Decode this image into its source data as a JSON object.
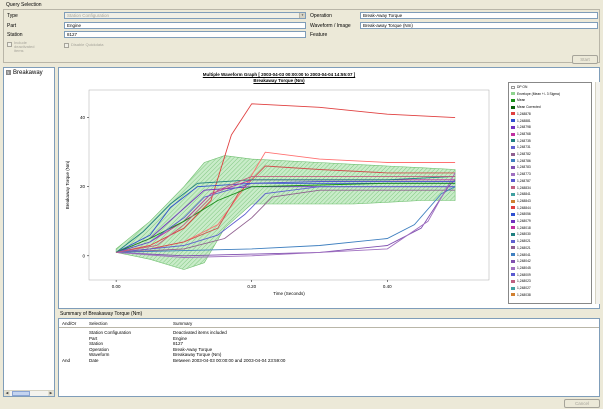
{
  "query_selection": {
    "title": "Query Selection",
    "type_label": "Type",
    "type_value": "Station Configuration",
    "part_label": "Part",
    "part_value": "Engine",
    "station_label": "Station",
    "station_value": "8127",
    "operation_label": "Operation",
    "operation_value": "Break-Away Torque",
    "waveform_label": "Waveform / Image",
    "waveform_value": "Break-away Torque (Nm)",
    "feature_label": "Feature",
    "feature_value": "",
    "include_label": "Include deactivated items",
    "disable_label": "Disable Quickdata",
    "start_button": "Start"
  },
  "tree": {
    "item_label": "Breakaway",
    "expander": "⊟"
  },
  "chart": {
    "title_line1": "Multiple Waveform Graph [ 2003-04-03 00:00:00 to 2003-04-04 14:55:07 ]",
    "title_line2": "Breakaway Torque (Nm)",
    "xlabel": "Time (Seconds)",
    "ylabel": "Breakaway Torque (Nm)",
    "colors": {
      "band": "#8fd48f",
      "band_stroke": "#6fbf6f",
      "mean": "#1a8f1a",
      "mean_corrected": "#0a600a"
    }
  },
  "chart_data": {
    "type": "line",
    "title": "Multiple Waveform Graph [ 2003-04-03 00:00:00 to 2003-04-04 14:55:07 ]",
    "subtitle": "Breakaway Torque (Nm)",
    "xlabel": "Time (Seconds)",
    "ylabel": "Breakaway Torque (Nm)",
    "xlim": [
      -0.04,
      0.55
    ],
    "ylim": [
      -7,
      48
    ],
    "x_ticks": [
      0.0,
      0.2,
      0.4
    ],
    "x_tick_labels": [
      "0.00",
      "0.20",
      "0.40"
    ],
    "y_ticks": [
      0,
      20,
      40
    ],
    "y_tick_labels": [
      "0",
      "20",
      "40"
    ],
    "band": {
      "name": "Envelope (Mean +/- 3 Sigma)",
      "x": [
        0.0,
        0.05,
        0.1,
        0.13,
        0.16,
        0.2,
        0.25,
        0.3,
        0.35,
        0.4,
        0.45,
        0.5
      ],
      "upper": [
        2,
        10,
        20,
        27,
        29,
        28,
        27.5,
        27,
        26.5,
        26,
        25.5,
        25
      ],
      "lower": [
        1,
        -1,
        -4,
        -2,
        8,
        15,
        15,
        15,
        15,
        15.5,
        16,
        16
      ]
    },
    "legend": [
      "DP ON",
      "Envelope (Mean +/- 3 Sigma)",
      "Mean",
      "Mean Corrected",
      "1,248878",
      "1,248881",
      "1,248798",
      "1,248768",
      "1,248735",
      "1,248731",
      "1,248782",
      "1,248786",
      "1,248783",
      "1,248773",
      "1,248787",
      "1,248834",
      "1,248841",
      "1,248843",
      "1,248844",
      "1,248056",
      "1,248079",
      "1,248018",
      "1,248030",
      "1,248021",
      "1,248021",
      "1,248041",
      "1,248042",
      "1,248045",
      "1,248009",
      "1,248023",
      "1,248027",
      "1,248038"
    ],
    "series": [
      {
        "color": "#e04040",
        "x": [
          0.0,
          0.05,
          0.1,
          0.14,
          0.17,
          0.2,
          0.3,
          0.4,
          0.5
        ],
        "values": [
          1,
          3,
          8,
          16,
          35,
          44,
          43,
          41,
          40
        ]
      },
      {
        "color": "#ff7070",
        "x": [
          0.0,
          0.05,
          0.1,
          0.15,
          0.19,
          0.22,
          0.3,
          0.4,
          0.5
        ],
        "values": [
          1,
          2,
          4,
          9,
          20,
          30,
          28,
          27,
          27
        ]
      },
      {
        "color": "#d05050",
        "x": [
          0.0,
          0.05,
          0.1,
          0.15,
          0.18,
          0.22,
          0.3,
          0.4,
          0.5
        ],
        "values": [
          1,
          2,
          4,
          8,
          18,
          26,
          25,
          24,
          24
        ]
      },
      {
        "color": "#3050d0",
        "x": [
          0.0,
          0.05,
          0.08,
          0.12,
          0.2,
          0.3,
          0.4,
          0.5
        ],
        "values": [
          1,
          6,
          14,
          20,
          21,
          21,
          21,
          21
        ]
      },
      {
        "color": "#7030c0",
        "x": [
          0.0,
          0.05,
          0.09,
          0.13,
          0.2,
          0.3,
          0.4,
          0.5
        ],
        "values": [
          1,
          5,
          12,
          19,
          20,
          20,
          20,
          20
        ]
      },
      {
        "color": "#c030a0",
        "x": [
          0.0,
          0.05,
          0.1,
          0.14,
          0.2,
          0.3,
          0.4,
          0.5
        ],
        "values": [
          1,
          4,
          10,
          18,
          22,
          22,
          22,
          22
        ]
      },
      {
        "color": "#208080",
        "x": [
          0.0,
          0.04,
          0.08,
          0.12,
          0.2,
          0.3,
          0.4,
          0.5
        ],
        "values": [
          1,
          7,
          15,
          21,
          22,
          22,
          22,
          23
        ]
      },
      {
        "color": "#6060d0",
        "x": [
          0.0,
          0.1,
          0.15,
          0.19,
          0.22,
          0.3,
          0.4,
          0.5
        ],
        "values": [
          1,
          3,
          6,
          12,
          18,
          20,
          20,
          20
        ]
      },
      {
        "color": "#906090",
        "x": [
          0.0,
          0.1,
          0.16,
          0.2,
          0.23,
          0.3,
          0.4,
          0.5
        ],
        "values": [
          1,
          2,
          5,
          11,
          17,
          19,
          19,
          19
        ]
      },
      {
        "color": "#4080c0",
        "x": [
          0.0,
          0.1,
          0.2,
          0.3,
          0.4,
          0.44,
          0.48,
          0.5
        ],
        "values": [
          1,
          1.5,
          2,
          3,
          5,
          9,
          18,
          20
        ]
      },
      {
        "color": "#8050b0",
        "x": [
          0.0,
          0.1,
          0.2,
          0.3,
          0.4,
          0.45,
          0.49,
          0.5
        ],
        "values": [
          1,
          0,
          0.5,
          1,
          3,
          8,
          20,
          22
        ]
      },
      {
        "color": "#a070c0",
        "x": [
          0.0,
          0.1,
          0.2,
          0.3,
          0.4,
          0.46,
          0.5
        ],
        "values": [
          1,
          -0.5,
          0,
          1,
          2,
          10,
          24
        ]
      },
      {
        "color": "#1a8f1a",
        "x": [
          0.0,
          0.05,
          0.1,
          0.15,
          0.2,
          0.3,
          0.4,
          0.5
        ],
        "values": [
          1,
          5,
          10,
          16,
          20,
          20.5,
          21,
          21
        ]
      },
      {
        "color": "#5a5ad0",
        "x": [
          0.0,
          0.05,
          0.1,
          0.13,
          0.2,
          0.3,
          0.4,
          0.5
        ],
        "values": [
          1,
          4,
          11,
          17,
          21,
          21.5,
          21.5,
          21.5
        ]
      },
      {
        "color": "#c06080",
        "x": [
          0.0,
          0.06,
          0.1,
          0.15,
          0.2,
          0.3,
          0.4,
          0.5
        ],
        "values": [
          1,
          3,
          9,
          19,
          23,
          23,
          23,
          23
        ]
      }
    ]
  },
  "summary": {
    "title": "Summary of Breakaway Torque (Nm)",
    "headers": [
      "And/Or",
      "Selection",
      "Summary"
    ],
    "rows": [
      [
        "",
        "Station Configuration",
        "Deactivated items included"
      ],
      [
        "",
        "Part",
        "Engine"
      ],
      [
        "",
        "Station",
        "8127"
      ],
      [
        "",
        "Operation",
        "Break-Away Torque"
      ],
      [
        "",
        "Waveform",
        "Breakaway Torque (Nm)"
      ],
      [
        "And",
        "Date",
        "Between 2003-04-03 00:00:00 and 2003-04-04 23:59:00"
      ]
    ]
  },
  "footer": {
    "cancel_button": "Cancel"
  }
}
